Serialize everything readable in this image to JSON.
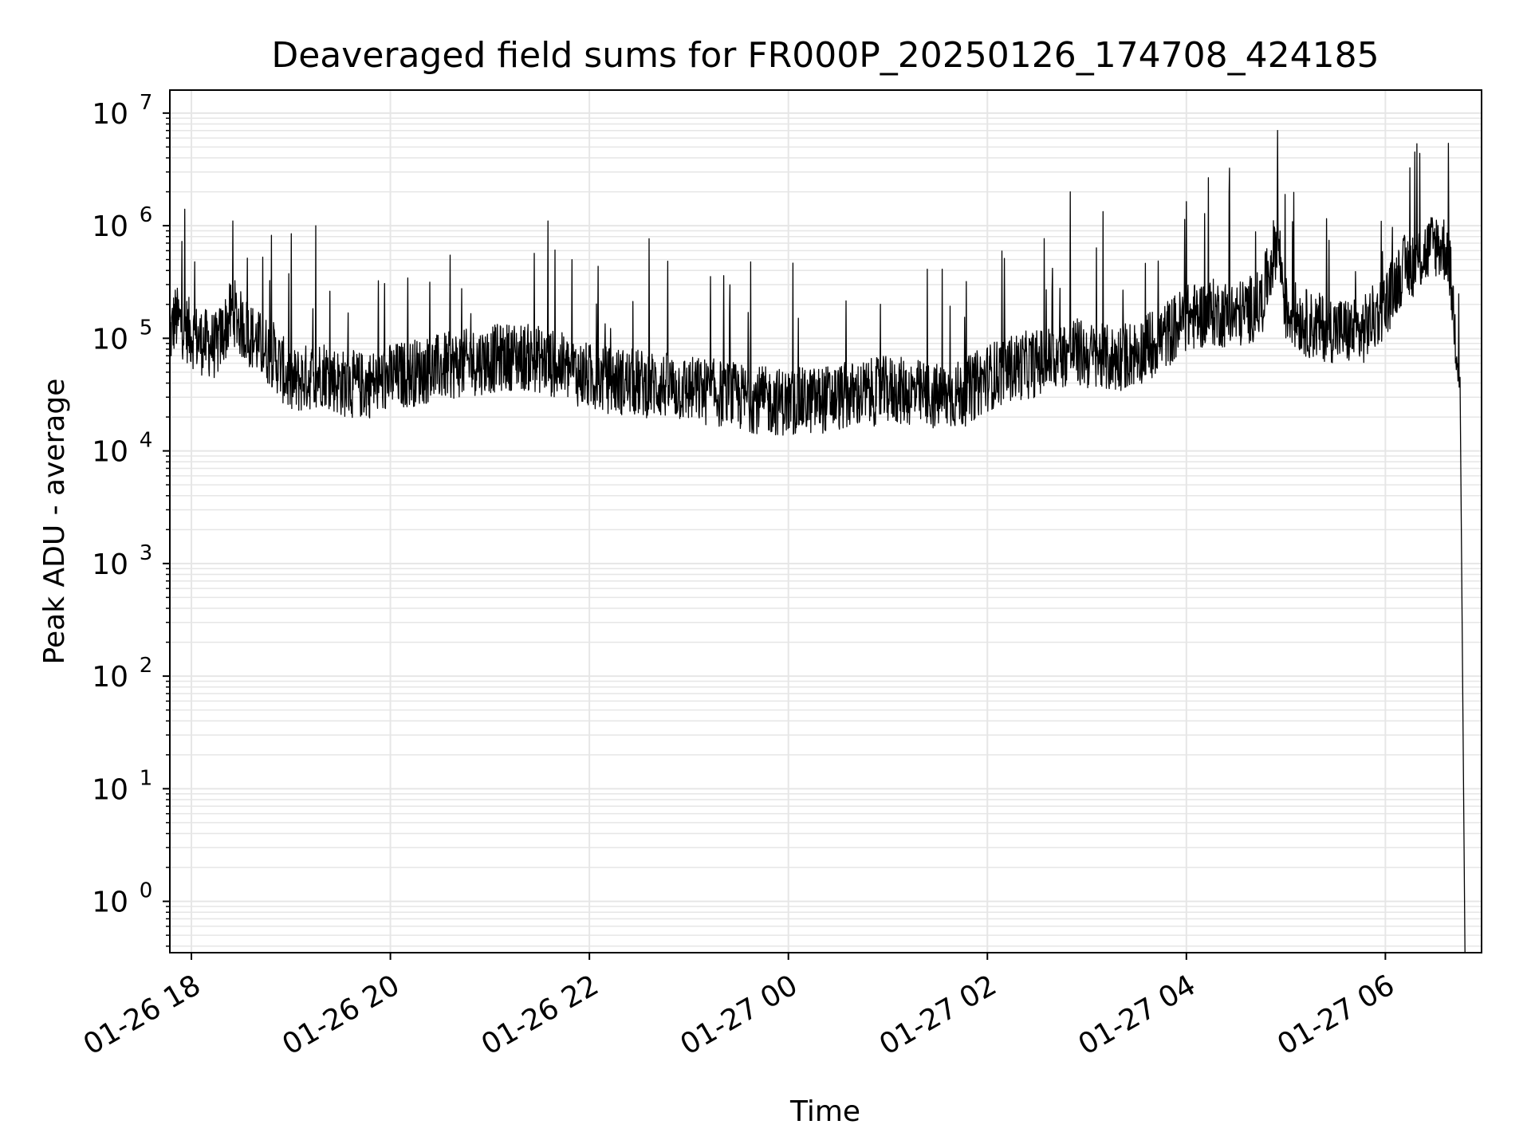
{
  "chart_data": {
    "type": "line",
    "title": "Deaveraged field sums for FR000P_20250126_174708_424185",
    "xlabel": "Time",
    "ylabel": "Peak ADU - average",
    "xlim": [
      "2025-01-26 17:47",
      "2025-01-27 06:58"
    ],
    "ylim": [
      0.35,
      16000000
    ],
    "yscale": "log",
    "grid": true,
    "grid_color": "#e6e6e6",
    "line_color": "#000000",
    "xticks": [
      {
        "value": "2025-01-26 18:00",
        "label": "01-26 18"
      },
      {
        "value": "2025-01-26 20:00",
        "label": "01-26 20"
      },
      {
        "value": "2025-01-26 22:00",
        "label": "01-26 22"
      },
      {
        "value": "2025-01-27 00:00",
        "label": "01-27 00"
      },
      {
        "value": "2025-01-27 02:00",
        "label": "01-27 02"
      },
      {
        "value": "2025-01-27 04:00",
        "label": "01-27 04"
      },
      {
        "value": "2025-01-27 06:00",
        "label": "01-27 06"
      }
    ],
    "yticks": [
      {
        "value": 1,
        "base": "10",
        "exp": "0"
      },
      {
        "value": 10,
        "base": "10",
        "exp": "1"
      },
      {
        "value": 100,
        "base": "10",
        "exp": "2"
      },
      {
        "value": 1000,
        "base": "10",
        "exp": "3"
      },
      {
        "value": 10000,
        "base": "10",
        "exp": "4"
      },
      {
        "value": 100000,
        "base": "10",
        "exp": "5"
      },
      {
        "value": 1000000,
        "base": "10",
        "exp": "6"
      },
      {
        "value": 10000000,
        "base": "10",
        "exp": "7"
      }
    ],
    "series": [
      {
        "x": [
          "2025-01-26 17:47",
          "2025-01-26 17:50",
          "2025-01-26 17:55",
          "2025-01-26 18:00",
          "2025-01-26 18:05",
          "2025-01-26 18:10",
          "2025-01-26 18:15",
          "2025-01-26 18:20",
          "2025-01-26 18:25",
          "2025-01-26 18:30",
          "2025-01-26 18:35",
          "2025-01-26 18:40",
          "2025-01-26 18:50",
          "2025-01-26 19:00",
          "2025-01-26 19:10",
          "2025-01-26 19:20",
          "2025-01-26 19:30",
          "2025-01-26 19:45",
          "2025-01-26 20:00",
          "2025-01-26 20:15",
          "2025-01-26 20:30",
          "2025-01-26 20:45",
          "2025-01-26 21:00",
          "2025-01-26 21:15",
          "2025-01-26 21:30",
          "2025-01-26 21:45",
          "2025-01-26 22:00",
          "2025-01-26 22:15",
          "2025-01-26 22:30",
          "2025-01-26 22:45",
          "2025-01-26 23:00",
          "2025-01-26 23:15",
          "2025-01-26 23:30",
          "2025-01-26 23:45",
          "2025-01-27 00:00",
          "2025-01-27 00:15",
          "2025-01-27 00:30",
          "2025-01-27 00:45",
          "2025-01-27 01:00",
          "2025-01-27 01:15",
          "2025-01-27 01:30",
          "2025-01-27 01:45",
          "2025-01-27 02:00",
          "2025-01-27 02:15",
          "2025-01-27 02:30",
          "2025-01-27 02:45",
          "2025-01-27 02:50",
          "2025-01-27 03:00",
          "2025-01-27 03:15",
          "2025-01-27 03:30",
          "2025-01-27 03:45",
          "2025-01-27 04:00",
          "2025-01-27 04:15",
          "2025-01-27 04:30",
          "2025-01-27 04:45",
          "2025-01-27 04:55",
          "2025-01-27 05:00",
          "2025-01-27 05:15",
          "2025-01-27 05:30",
          "2025-01-27 05:45",
          "2025-01-27 06:00",
          "2025-01-27 06:10",
          "2025-01-27 06:20",
          "2025-01-27 06:30",
          "2025-01-27 06:38",
          "2025-01-27 06:42",
          "2025-01-27 06:45",
          "2025-01-27 06:48"
        ],
        "y": [
          100000,
          150000,
          130000,
          110000,
          95000,
          90000,
          85000,
          120000,
          180000,
          130000,
          110000,
          90000,
          70000,
          40000,
          45000,
          50000,
          40000,
          38000,
          45000,
          50000,
          55000,
          60000,
          65000,
          70000,
          65000,
          55000,
          45000,
          42000,
          40000,
          38000,
          35000,
          33000,
          30000,
          28000,
          27000,
          28000,
          30000,
          32000,
          35000,
          33000,
          30000,
          32000,
          45000,
          55000,
          60000,
          70000,
          80000,
          70000,
          65000,
          75000,
          100000,
          150000,
          170000,
          160000,
          200000,
          800000,
          180000,
          130000,
          120000,
          110000,
          200000,
          400000,
          500000,
          700000,
          600000,
          120000,
          45000,
          0.35
        ]
      }
    ],
    "annotations_spikes": [
      {
        "x": "2025-01-27 02:50",
        "y": 2000000
      },
      {
        "x": "2025-01-27 04:55",
        "y": 7000000
      },
      {
        "x": "2025-01-26 21:35",
        "y": 1100000
      },
      {
        "x": "2025-01-26 18:25",
        "y": 1100000
      },
      {
        "x": "2025-01-26 19:15",
        "y": 1000000
      }
    ]
  }
}
